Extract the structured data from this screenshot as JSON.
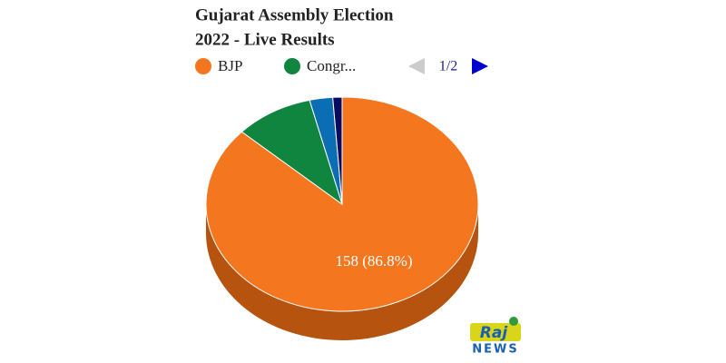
{
  "chart_data": {
    "type": "pie",
    "title": "Gujarat Assembly Election",
    "subtitle": "2022 - Live Results",
    "categories": [
      "BJP",
      "Congr...",
      null,
      null
    ],
    "values": [
      158,
      17,
      5,
      2
    ],
    "value_labels": [
      "158 (86.8%)",
      null,
      null,
      null
    ],
    "colors": [
      "#f47720",
      "#108540",
      "#0b6eb4",
      "#0a0a5e"
    ],
    "side_color": "#b5530f",
    "legend_page": "1/2"
  },
  "logo": {
    "top": "Raj",
    "bottom": "NEWS"
  }
}
